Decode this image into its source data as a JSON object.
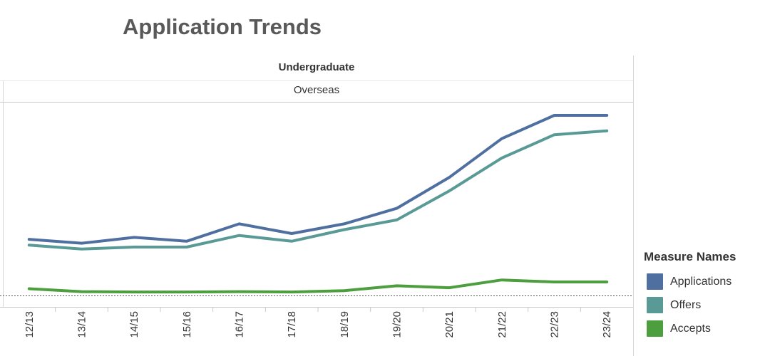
{
  "chart_data": {
    "type": "line",
    "title": "Application Trends",
    "header": "Undergraduate",
    "subheader": "Overseas",
    "categories": [
      "12/13",
      "13/14",
      "14/15",
      "15/16",
      "16/17",
      "17/18",
      "18/19",
      "19/20",
      "20/21",
      "21/22",
      "22/23",
      "23/24"
    ],
    "ylim": [
      0,
      100
    ],
    "series": [
      {
        "name": "Applications",
        "color": "#4e6fa0",
        "values": [
          29,
          27,
          30,
          28,
          37,
          32,
          37,
          45,
          61,
          81,
          93,
          93
        ]
      },
      {
        "name": "Offers",
        "color": "#5a9a96",
        "values": [
          26,
          24,
          25,
          25,
          31,
          28,
          34,
          39,
          54,
          71,
          83,
          85
        ]
      },
      {
        "name": "Accepts",
        "color": "#4d9e3f",
        "values": [
          3.5,
          2,
          1.8,
          1.8,
          2,
          1.8,
          2.5,
          5,
          4,
          8,
          7,
          7
        ]
      }
    ],
    "legend_title": "Measure Names",
    "legend_position": "bottom-right",
    "grid": false
  }
}
